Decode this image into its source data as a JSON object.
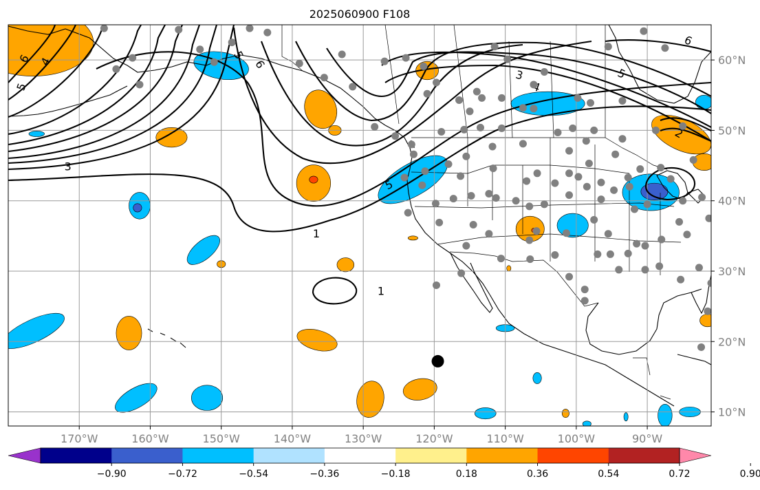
{
  "title": "2025060900 F108",
  "map": {
    "lon_range": [
      -180,
      -81
    ],
    "lat_range": [
      8,
      65
    ],
    "lon_ticks": [
      {
        "value": -170,
        "label": "170°W"
      },
      {
        "value": -160,
        "label": "160°W"
      },
      {
        "value": -150,
        "label": "150°W"
      },
      {
        "value": -140,
        "label": "140°W"
      },
      {
        "value": -130,
        "label": "130°W"
      },
      {
        "value": -120,
        "label": "120°W"
      },
      {
        "value": -110,
        "label": "110°W"
      },
      {
        "value": -100,
        "label": "100°W"
      },
      {
        "value": -90,
        "label": "90°W"
      }
    ],
    "lat_ticks": [
      {
        "value": 60,
        "label": "60°N"
      },
      {
        "value": 50,
        "label": "50°N"
      },
      {
        "value": 40,
        "label": "40°N"
      },
      {
        "value": 30,
        "label": "30°N"
      },
      {
        "value": 20,
        "label": "20°N"
      },
      {
        "value": 10,
        "label": "10°N"
      }
    ],
    "grid": true,
    "marker": {
      "name": "center-marker",
      "lon": -119.5,
      "lat": 17.2,
      "color": "#000000"
    },
    "stations_color": "#808080"
  },
  "colorbar": {
    "colors": [
      "#9932cc",
      "#00008b",
      "#3a5fcd",
      "#00bfff",
      "#b0e2ff",
      "#ffffff",
      "#fff08c",
      "#ffa500",
      "#ff4500",
      "#b22222",
      "#ff88aa"
    ],
    "tick_labels": [
      "−0.90",
      "−0.72",
      "−0.54",
      "−0.36",
      "−0.18",
      "0.18",
      "0.36",
      "0.54",
      "0.72",
      "0.90"
    ]
  },
  "contour_labels": [
    {
      "text": "6",
      "lon": -177.8,
      "lat": 60.2,
      "rotate": -60
    },
    {
      "text": "5",
      "lon": -178.2,
      "lat": 56.2,
      "rotate": -70
    },
    {
      "text": "4",
      "lon": -174.8,
      "lat": 59.8,
      "rotate": -60
    },
    {
      "text": "3",
      "lon": -171.6,
      "lat": 44.9,
      "rotate": 0
    },
    {
      "text": "5",
      "lon": -147.5,
      "lat": 60.7,
      "rotate": 60
    },
    {
      "text": "6",
      "lon": -144.5,
      "lat": 59.4,
      "rotate": 60
    },
    {
      "text": "4",
      "lon": -123.2,
      "lat": 48.0,
      "rotate": -25
    },
    {
      "text": "5",
      "lon": -126.4,
      "lat": 42.3,
      "rotate": -25
    },
    {
      "text": "1",
      "lon": -136.6,
      "lat": 35.4,
      "rotate": 0
    },
    {
      "text": "1",
      "lon": -127.5,
      "lat": 27.2,
      "rotate": 0
    },
    {
      "text": "3",
      "lon": -108.0,
      "lat": 57.9,
      "rotate": 15
    },
    {
      "text": "4",
      "lon": -105.6,
      "lat": 56.2,
      "rotate": 20
    },
    {
      "text": "5",
      "lon": -93.6,
      "lat": 58.1,
      "rotate": 25
    },
    {
      "text": "2",
      "lon": -85.5,
      "lat": 49.6,
      "rotate": 30
    },
    {
      "text": "6",
      "lon": -84.2,
      "lat": 62.8,
      "rotate": 25
    }
  ],
  "fields": {
    "positive": [
      {
        "lon": -176.5,
        "lat": 62.5,
        "rx": 8.5,
        "ry": 4.8,
        "rot": 0,
        "level": "orange"
      },
      {
        "lon": -157.0,
        "lat": 49.0,
        "rx": 2.2,
        "ry": 1.4,
        "rot": 0,
        "level": "orange"
      },
      {
        "lon": -136.0,
        "lat": 53.0,
        "rx": 2.2,
        "ry": 2.8,
        "rot": -20,
        "level": "orange"
      },
      {
        "lon": -134.0,
        "lat": 50.0,
        "rx": 0.9,
        "ry": 0.7,
        "rot": 0,
        "level": "orange"
      },
      {
        "lon": -137.0,
        "lat": 42.5,
        "rx": 2.4,
        "ry": 2.6,
        "rot": 0,
        "level": "orange"
      },
      {
        "lon": -121.0,
        "lat": 58.5,
        "rx": 1.6,
        "ry": 1.3,
        "rot": 0,
        "level": "orange"
      },
      {
        "lon": -106.5,
        "lat": 36.0,
        "rx": 2.0,
        "ry": 1.8,
        "rot": 0,
        "level": "orange"
      },
      {
        "lon": -150.0,
        "lat": 31.0,
        "rx": 0.6,
        "ry": 0.5,
        "rot": 0,
        "level": "orange"
      },
      {
        "lon": -132.5,
        "lat": 30.9,
        "rx": 1.2,
        "ry": 1.0,
        "rot": 0,
        "level": "orange"
      },
      {
        "lon": -163.0,
        "lat": 21.2,
        "rx": 1.8,
        "ry": 2.4,
        "rot": 0,
        "level": "orange"
      },
      {
        "lon": -136.5,
        "lat": 20.2,
        "rx": 2.9,
        "ry": 1.4,
        "rot": 15,
        "level": "orange"
      },
      {
        "lon": -129.0,
        "lat": 11.8,
        "rx": 1.9,
        "ry": 2.6,
        "rot": 10,
        "level": "orange"
      },
      {
        "lon": -122.0,
        "lat": 13.2,
        "rx": 2.4,
        "ry": 1.5,
        "rot": -10,
        "level": "orange"
      },
      {
        "lon": -123.0,
        "lat": 34.7,
        "rx": 0.7,
        "ry": 0.3,
        "rot": 0,
        "level": "orange"
      },
      {
        "lon": -85.2,
        "lat": 49.4,
        "rx": 4.5,
        "ry": 2.2,
        "rot": 25,
        "level": "orange"
      },
      {
        "lon": -82.0,
        "lat": 45.5,
        "rx": 1.6,
        "ry": 1.2,
        "rot": 0,
        "level": "orange"
      },
      {
        "lon": -81.5,
        "lat": 23.0,
        "rx": 1.1,
        "ry": 0.9,
        "rot": 0,
        "level": "orange"
      },
      {
        "lon": -101.5,
        "lat": 9.8,
        "rx": 0.5,
        "ry": 0.6,
        "rot": 0,
        "level": "orange"
      },
      {
        "lon": -109.5,
        "lat": 30.4,
        "rx": 0.3,
        "ry": 0.4,
        "rot": 0,
        "level": "orange"
      },
      {
        "lon": -137.0,
        "lat": 43.0,
        "rx": 0.6,
        "ry": 0.5,
        "rot": 0,
        "level": "red"
      },
      {
        "lon": -106.0,
        "lat": 35.8,
        "rx": 0.3,
        "ry": 0.3,
        "rot": 0,
        "level": "red"
      }
    ],
    "negative": [
      {
        "lon": -150.0,
        "lat": 59.2,
        "rx": 3.9,
        "ry": 1.9,
        "rot": 10,
        "level": "blue"
      },
      {
        "lon": -104.0,
        "lat": 53.8,
        "rx": 5.2,
        "ry": 1.7,
        "rot": 0,
        "level": "blue"
      },
      {
        "lon": -82.0,
        "lat": 54.0,
        "rx": 1.2,
        "ry": 1.0,
        "rot": 0,
        "level": "blue"
      },
      {
        "lon": -176.0,
        "lat": 49.5,
        "rx": 1.1,
        "ry": 0.4,
        "rot": 0,
        "level": "blue"
      },
      {
        "lon": -123.0,
        "lat": 43.0,
        "rx": 5.5,
        "ry": 2.3,
        "rot": -30,
        "level": "blue"
      },
      {
        "lon": -161.5,
        "lat": 39.3,
        "rx": 1.5,
        "ry": 1.9,
        "rot": 0,
        "level": "blue"
      },
      {
        "lon": -89.5,
        "lat": 41.2,
        "rx": 4.0,
        "ry": 2.6,
        "rot": 0,
        "level": "blue"
      },
      {
        "lon": -100.5,
        "lat": 36.5,
        "rx": 2.2,
        "ry": 1.7,
        "rot": 0,
        "level": "blue"
      },
      {
        "lon": -152.5,
        "lat": 33.0,
        "rx": 2.8,
        "ry": 1.3,
        "rot": -40,
        "level": "blue"
      },
      {
        "lon": -176.5,
        "lat": 21.5,
        "rx": 4.8,
        "ry": 1.6,
        "rot": -25,
        "level": "blue"
      },
      {
        "lon": -162.0,
        "lat": 12.0,
        "rx": 3.3,
        "ry": 1.4,
        "rot": -30,
        "level": "blue"
      },
      {
        "lon": -152.0,
        "lat": 12.0,
        "rx": 2.2,
        "ry": 1.8,
        "rot": 0,
        "level": "blue"
      },
      {
        "lon": -112.8,
        "lat": 9.8,
        "rx": 1.5,
        "ry": 0.8,
        "rot": 0,
        "level": "blue"
      },
      {
        "lon": -110.0,
        "lat": 21.9,
        "rx": 1.3,
        "ry": 0.5,
        "rot": 0,
        "level": "blue"
      },
      {
        "lon": -105.5,
        "lat": 14.8,
        "rx": 0.6,
        "ry": 0.8,
        "rot": 0,
        "level": "blue"
      },
      {
        "lon": -87.5,
        "lat": 9.5,
        "rx": 1.0,
        "ry": 1.6,
        "rot": 0,
        "level": "blue"
      },
      {
        "lon": -84.0,
        "lat": 10.0,
        "rx": 1.5,
        "ry": 0.7,
        "rot": 0,
        "level": "blue"
      },
      {
        "lon": -93.0,
        "lat": 9.3,
        "rx": 0.3,
        "ry": 0.6,
        "rot": 0,
        "level": "blue"
      },
      {
        "lon": -98.5,
        "lat": 8.3,
        "rx": 0.6,
        "ry": 0.4,
        "rot": 0,
        "level": "blue"
      },
      {
        "lon": -161.8,
        "lat": 39.0,
        "rx": 0.6,
        "ry": 0.6,
        "rot": 0,
        "level": "indigo"
      },
      {
        "lon": -89.0,
        "lat": 41.3,
        "rx": 1.9,
        "ry": 1.2,
        "rot": 0,
        "level": "indigo"
      }
    ]
  },
  "stations": [
    [
      -166.5,
      64.5
    ],
    [
      -162.5,
      60.3
    ],
    [
      -164.8,
      58.7
    ],
    [
      -161.5,
      56.5
    ],
    [
      -156,
      64.3
    ],
    [
      -153,
      61.5
    ],
    [
      -151,
      59.7
    ],
    [
      -148.5,
      62.5
    ],
    [
      -146,
      64.5
    ],
    [
      -143.5,
      63.9
    ],
    [
      -139,
      59.5
    ],
    [
      -135.5,
      57.5
    ],
    [
      -133,
      60.8
    ],
    [
      -131.5,
      56.2
    ],
    [
      -127,
      59.8
    ],
    [
      -121,
      55.2
    ],
    [
      -121.5,
      59.1
    ],
    [
      -116.5,
      54.3
    ],
    [
      -114,
      55.5
    ],
    [
      -113.3,
      54.6
    ],
    [
      -115,
      52.7
    ],
    [
      -110.5,
      54.6
    ],
    [
      -107.5,
      53.2
    ],
    [
      -106,
      53.1
    ],
    [
      -106,
      56.5
    ],
    [
      -109.7,
      60.1
    ],
    [
      -111.5,
      61.9
    ],
    [
      -104.5,
      58.3
    ],
    [
      -99.8,
      54.6
    ],
    [
      -98,
      53.9
    ],
    [
      -93.5,
      54.2
    ],
    [
      -95.5,
      61.9
    ],
    [
      -87.5,
      61.7
    ],
    [
      -90.5,
      64.1
    ],
    [
      -85,
      50.6
    ],
    [
      -88.8,
      50
    ],
    [
      -93.5,
      48.8
    ],
    [
      -94.5,
      46.6
    ],
    [
      -98.6,
      48.5
    ],
    [
      -101,
      47.1
    ],
    [
      -100.5,
      50.3
    ],
    [
      -97.5,
      50
    ],
    [
      -102.6,
      49.7
    ],
    [
      -107.5,
      48.1
    ],
    [
      -111.8,
      47.7
    ],
    [
      -113.5,
      50.4
    ],
    [
      -110.5,
      50.3
    ],
    [
      -115.8,
      50.1
    ],
    [
      -119,
      49.8
    ],
    [
      -125.5,
      49.2
    ],
    [
      -128.4,
      50.5
    ],
    [
      -123.2,
      48
    ],
    [
      -122.9,
      46.6
    ],
    [
      -124.2,
      43.3
    ],
    [
      -121.3,
      44.2
    ],
    [
      -116.3,
      43.5
    ],
    [
      -115.5,
      46.3
    ],
    [
      -111.7,
      44.6
    ],
    [
      -118,
      45.2
    ],
    [
      -121.7,
      42.2
    ],
    [
      -117.3,
      40.3
    ],
    [
      -119.8,
      39.6
    ],
    [
      -114.8,
      40.7
    ],
    [
      -112.3,
      41
    ],
    [
      -111.3,
      40.4
    ],
    [
      -108.5,
      40
    ],
    [
      -106.6,
      39.2
    ],
    [
      -104.5,
      39.5
    ],
    [
      -107,
      42.8
    ],
    [
      -105.5,
      43.9
    ],
    [
      -103,
      42.5
    ],
    [
      -98.5,
      42
    ],
    [
      -99.7,
      43.4
    ],
    [
      -96.5,
      42.6
    ],
    [
      -98.2,
      45.3
    ],
    [
      -101,
      43.9
    ],
    [
      -101,
      40.8
    ],
    [
      -96.5,
      40.2
    ],
    [
      -94.7,
      41.5
    ],
    [
      -92.7,
      43.3
    ],
    [
      -91,
      44.5
    ],
    [
      -88.1,
      44.7
    ],
    [
      -92.5,
      42
    ],
    [
      -91.8,
      38.8
    ],
    [
      -90,
      39.5
    ],
    [
      -85,
      40
    ],
    [
      -82.3,
      40.5
    ],
    [
      -86.7,
      43.1
    ],
    [
      -83.5,
      45.8
    ],
    [
      -80,
      43.2
    ],
    [
      -80,
      40.5
    ],
    [
      -81.3,
      37.5
    ],
    [
      -84.4,
      35.2
    ],
    [
      -85.5,
      37
    ],
    [
      -88,
      34.5
    ],
    [
      -90.3,
      33.6
    ],
    [
      -88.3,
      30.7
    ],
    [
      -91.5,
      33.9
    ],
    [
      -92.7,
      32.5
    ],
    [
      -95.5,
      35.3
    ],
    [
      -97.5,
      37.3
    ],
    [
      -101.4,
      35.4
    ],
    [
      -105.6,
      35.7
    ],
    [
      -106.6,
      34.4
    ],
    [
      -106.5,
      31.7
    ],
    [
      -103,
      32.3
    ],
    [
      -101,
      29.2
    ],
    [
      -98.8,
      27.4
    ],
    [
      -98.8,
      25.8
    ],
    [
      -97,
      32.4
    ],
    [
      -95.2,
      32.4
    ],
    [
      -94,
      30.2
    ],
    [
      -90.3,
      30.2
    ],
    [
      -85.3,
      28.8
    ],
    [
      -82.7,
      30.5
    ],
    [
      -81,
      28.3
    ],
    [
      -80.3,
      26
    ],
    [
      -81.5,
      24.3
    ],
    [
      -82.4,
      19.2
    ],
    [
      -110.6,
      31.8
    ],
    [
      -112.3,
      35.3
    ],
    [
      -114.5,
      36.6
    ],
    [
      -115.5,
      33.6
    ],
    [
      -119.3,
      36.9
    ],
    [
      -123.7,
      38.3
    ],
    [
      -116.2,
      29.7
    ],
    [
      -119.7,
      28
    ],
    [
      -119.7,
      56.8
    ],
    [
      -124,
      60.3
    ]
  ]
}
